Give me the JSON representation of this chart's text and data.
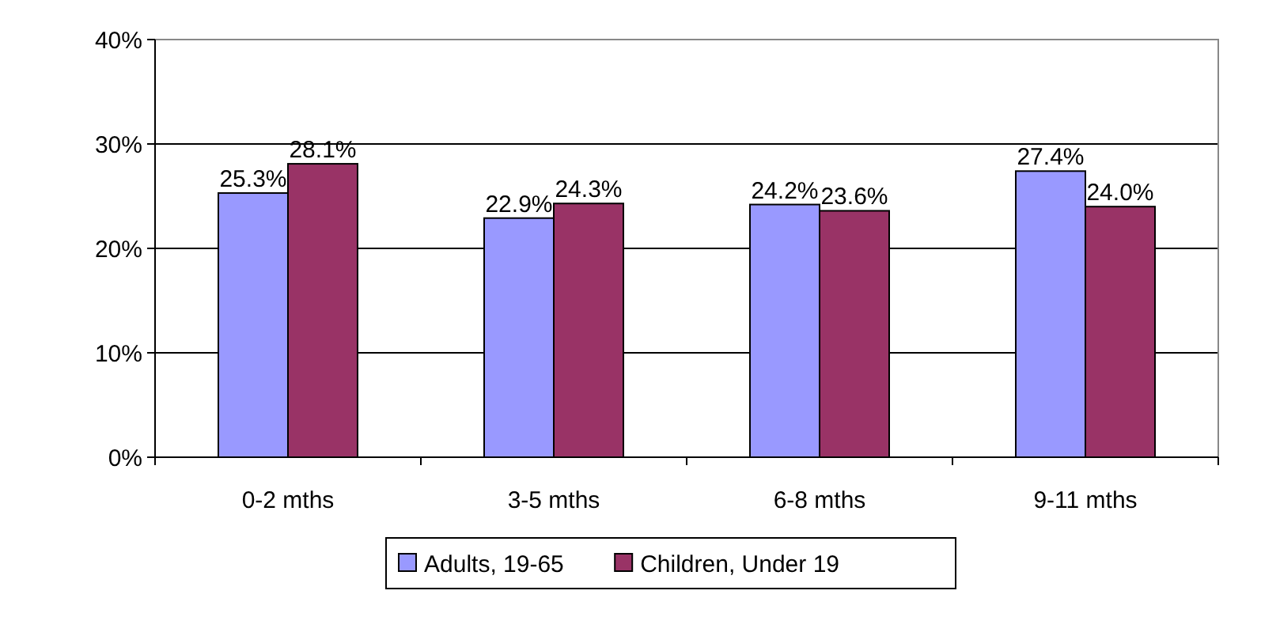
{
  "chart_data": {
    "type": "bar",
    "categories": [
      "0-2 mths",
      "3-5 mths",
      "6-8 mths",
      "9-11 mths"
    ],
    "series": [
      {
        "name": "Adults, 19-65",
        "color": "#9999ff",
        "values": [
          25.3,
          22.9,
          24.2,
          27.4
        ],
        "value_labels": [
          "25.3%",
          "22.9%",
          "24.2%",
          "27.4%"
        ]
      },
      {
        "name": "Children, Under 19",
        "color": "#993366",
        "values": [
          28.1,
          24.3,
          23.6,
          24.0
        ],
        "value_labels": [
          "28.1%",
          "24.3%",
          "23.6%",
          "24.0%"
        ]
      }
    ],
    "ylim": [
      0,
      40
    ],
    "yticks": [
      {
        "value": 0,
        "label": "0%"
      },
      {
        "value": 10,
        "label": "10%"
      },
      {
        "value": 20,
        "label": "20%"
      },
      {
        "value": 30,
        "label": "30%"
      },
      {
        "value": 40,
        "label": "40%"
      }
    ],
    "grid": "y",
    "legend": "bottom"
  }
}
